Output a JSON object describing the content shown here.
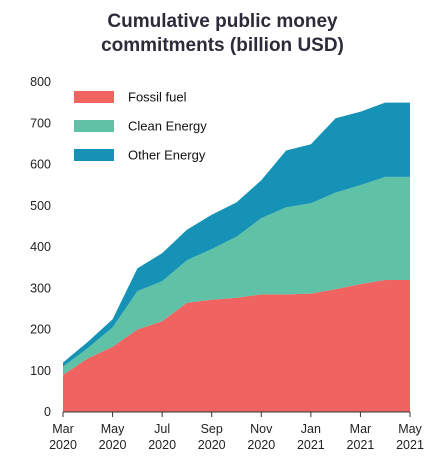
{
  "chart_data": {
    "type": "area",
    "stacked": true,
    "title_line1": "Cumulative public money",
    "title_line2": "commitments (billion USD)",
    "xlabel": "",
    "ylabel": "",
    "ylim": [
      0,
      800
    ],
    "yticks": [
      0,
      100,
      200,
      300,
      400,
      500,
      600,
      700,
      800
    ],
    "x": [
      "2020-03",
      "2020-04",
      "2020-05",
      "2020-06",
      "2020-07",
      "2020-08",
      "2020-09",
      "2020-10",
      "2020-11",
      "2020-12",
      "2021-01",
      "2021-02",
      "2021-03",
      "2021-04",
      "2021-05"
    ],
    "xticks": [
      {
        "month": "Mar",
        "year": "2020"
      },
      {
        "month": "May",
        "year": "2020"
      },
      {
        "month": "Jul",
        "year": "2020"
      },
      {
        "month": "Sep",
        "year": "2020"
      },
      {
        "month": "Nov",
        "year": "2020"
      },
      {
        "month": "Jan",
        "year": "2021"
      },
      {
        "month": "Mar",
        "year": "2021"
      },
      {
        "month": "May",
        "year": "2021"
      }
    ],
    "grid": false,
    "legend_position": "top-left",
    "series": [
      {
        "name": "Fossil fuel",
        "color": "#ef6361",
        "values": [
          90,
          130,
          158,
          200,
          220,
          265,
          272,
          277,
          285,
          285,
          287,
          298,
          310,
          320,
          320
        ]
      },
      {
        "name": "Clean Energy",
        "color": "#5fc2a6",
        "values": [
          20,
          25,
          47,
          93,
          97,
          103,
          123,
          148,
          185,
          211,
          219,
          234,
          240,
          250,
          250
        ]
      },
      {
        "name": "Other Energy",
        "color": "#1592b5",
        "values": [
          10,
          15,
          20,
          55,
          68,
          74,
          83,
          83,
          92,
          138,
          143,
          180,
          178,
          180,
          180
        ]
      }
    ]
  }
}
